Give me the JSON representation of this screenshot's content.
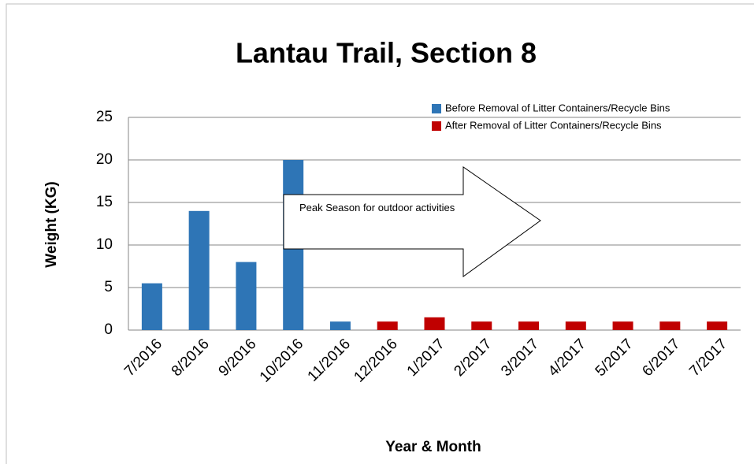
{
  "chart_data": {
    "type": "bar",
    "title": "Lantau Trail, Section 8",
    "x_label": "Year & Month",
    "y_label": "Weight (KG)",
    "categories": [
      "7/2016",
      "8/2016",
      "9/2016",
      "10/2016",
      "11/2016",
      "12/2016",
      "1/2017",
      "2/2017",
      "3/2017",
      "4/2017",
      "5/2017",
      "6/2017",
      "7/2017"
    ],
    "series": [
      {
        "name": "Before Removal of Litter Containers/Recycle Bins",
        "color": "#2e75b6",
        "values": [
          5.5,
          14,
          8,
          20,
          1,
          null,
          null,
          null,
          null,
          null,
          null,
          null,
          null
        ]
      },
      {
        "name": "After Removal of Litter Containers/Recycle Bins",
        "color": "#c00000",
        "values": [
          null,
          null,
          null,
          null,
          null,
          1,
          1.5,
          1,
          1,
          1,
          1,
          1,
          1
        ]
      }
    ],
    "ylim": [
      0,
      25
    ],
    "yticks": [
      0,
      5,
      10,
      15,
      20,
      25
    ],
    "grid": true,
    "legend": "top-right",
    "annotation": "Peak Season for outdoor activities"
  }
}
